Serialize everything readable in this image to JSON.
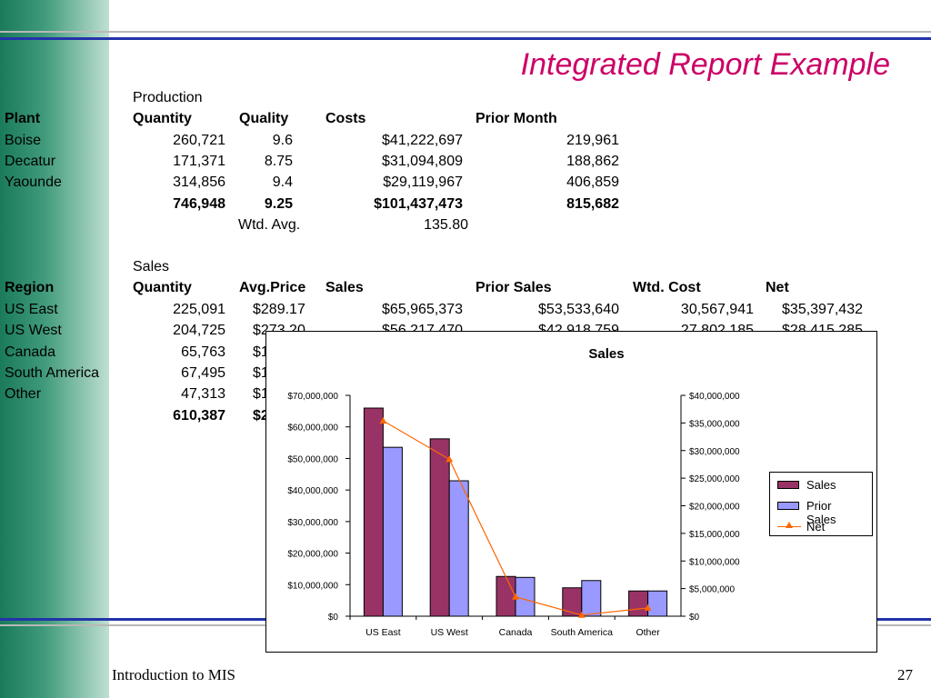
{
  "slide": {
    "title": "Integrated Report Example",
    "footer_left": "Introduction to MIS",
    "page_number": "27"
  },
  "production": {
    "group_header": "Production",
    "headers": [
      "Plant",
      "Quantity",
      "Quality",
      "Costs",
      "Prior Month"
    ],
    "rows": [
      [
        "Boise",
        "260,721",
        "9.6",
        "$41,222,697",
        "219,961"
      ],
      [
        "Decatur",
        "171,371",
        "8.75",
        "$31,094,809",
        "188,862"
      ],
      [
        "Yaounde",
        "314,856",
        "9.4",
        "$29,119,967",
        "406,859"
      ]
    ],
    "totals": [
      "",
      "746,948",
      "9.25",
      "$101,437,473",
      "815,682"
    ],
    "wtd_label": "Wtd. Avg.",
    "wtd_value": "135.80"
  },
  "sales": {
    "group_header": "Sales",
    "headers": [
      "Region",
      "Quantity",
      "Avg.Price",
      "Sales",
      "Prior Sales",
      "Wtd. Cost",
      "Net"
    ],
    "rows": [
      [
        "US East",
        "225,091",
        "$289.17",
        "$65,965,373",
        "$53,533,640",
        "30,567,941",
        "$35,397,432"
      ],
      [
        "US West",
        "204,725",
        "$273.20",
        "$56,217,470",
        "$42,918,759",
        "27,802,185",
        "$28,415,285"
      ],
      [
        "Canada",
        "65,763",
        "$1",
        "",
        "",
        "",
        ""
      ],
      [
        "South America",
        "67,495",
        "$1",
        "",
        "",
        "",
        ""
      ],
      [
        "Other",
        "47,313",
        "$1",
        "",
        "",
        "",
        ""
      ]
    ],
    "totals": [
      "",
      "610,387",
      "$2",
      "",
      "",
      "",
      ""
    ]
  },
  "chart_data": {
    "type": "bar",
    "title": "Sales",
    "categories": [
      "US East",
      "US West",
      "Canada",
      "South America",
      "Other"
    ],
    "series": [
      {
        "name": "Sales",
        "type": "bar",
        "axis": "left",
        "color": "#993366",
        "values": [
          65965373,
          56217470,
          12600000,
          9000000,
          8000000
        ]
      },
      {
        "name": "Prior Sales",
        "type": "bar",
        "axis": "left",
        "color": "#9999ff",
        "values": [
          53533640,
          42918759,
          12300000,
          11300000,
          8000000
        ]
      },
      {
        "name": "Net",
        "type": "line",
        "axis": "right",
        "color": "#ff6600",
        "values": [
          35397432,
          28415285,
          3500000,
          200000,
          1500000
        ]
      }
    ],
    "left_axis": {
      "ylim": [
        0,
        70000000
      ],
      "ticks": [
        "$0",
        "$10,000,000",
        "$20,000,000",
        "$30,000,000",
        "$40,000,000",
        "$50,000,000",
        "$60,000,000",
        "$70,000,000"
      ]
    },
    "right_axis": {
      "ylim": [
        0,
        40000000
      ],
      "ticks": [
        "$0",
        "$5,000,000",
        "$10,000,000",
        "$15,000,000",
        "$20,000,000",
        "$25,000,000",
        "$30,000,000",
        "$35,000,000",
        "$40,000,000"
      ]
    },
    "grid": false,
    "legend": "right"
  }
}
